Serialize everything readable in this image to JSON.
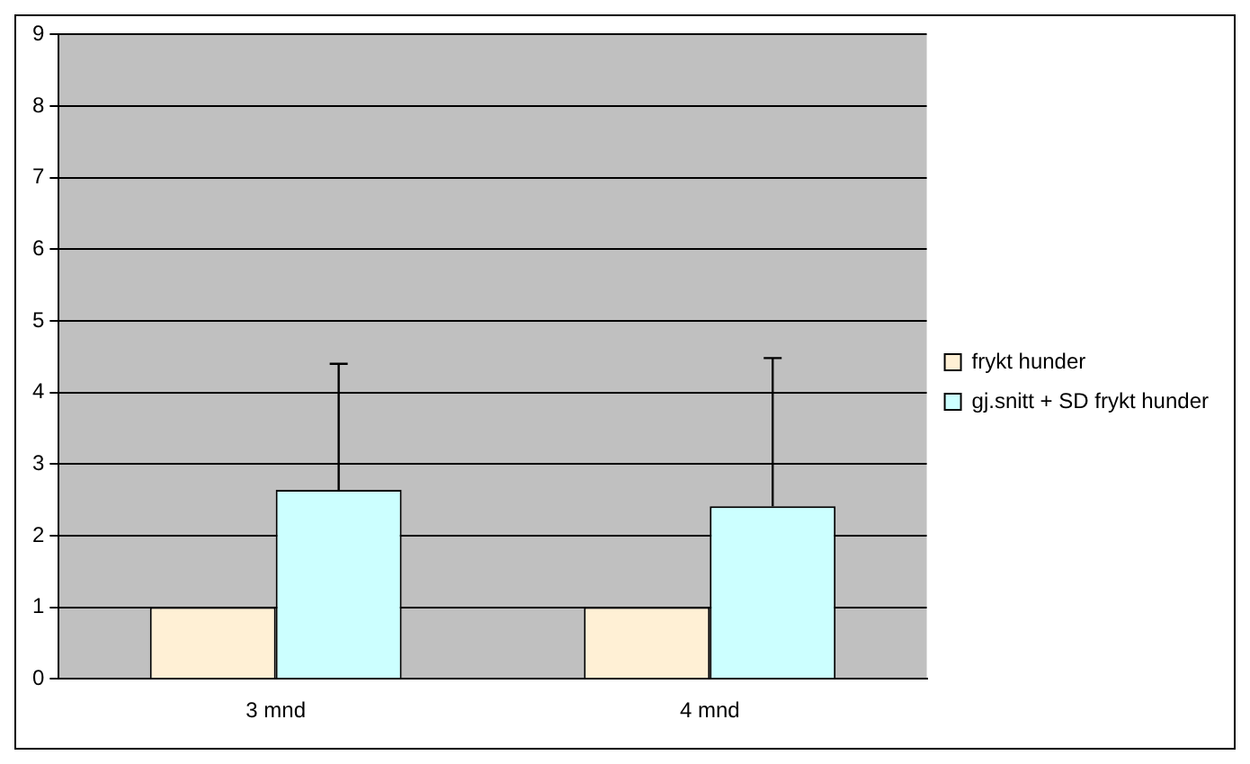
{
  "chart_data": {
    "type": "bar",
    "categories": [
      "3 mnd",
      "4 mnd"
    ],
    "series": [
      {
        "name": "frykt hunder",
        "color": "#fff0d5",
        "values": [
          1,
          1
        ]
      },
      {
        "name": "gj.snitt + SD frykt hunder",
        "color": "#ccffff",
        "values": [
          2.64,
          2.41
        ],
        "errors": [
          [
            2.64,
            4.4
          ],
          [
            2.41,
            4.48
          ]
        ]
      }
    ],
    "ylim": [
      0,
      9
    ],
    "yticks": [
      0,
      1,
      2,
      3,
      4,
      5,
      6,
      7,
      8,
      9
    ],
    "grid": "y",
    "legend": "right"
  }
}
